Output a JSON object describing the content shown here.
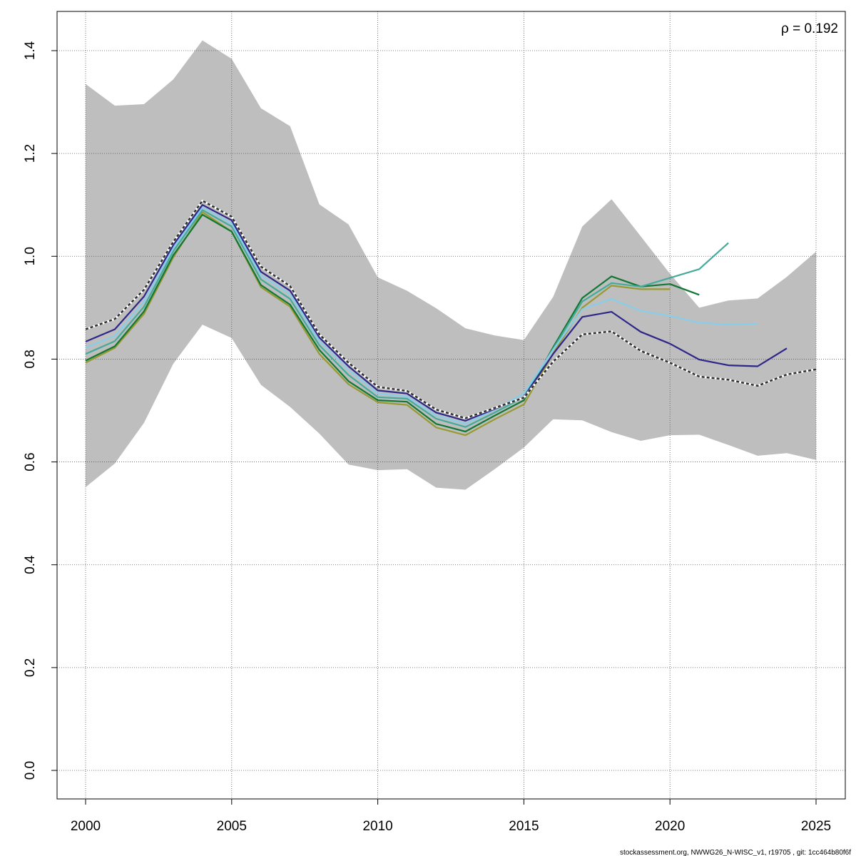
{
  "chart_data": {
    "type": "line",
    "title": "",
    "xlabel": "",
    "ylabel": "",
    "xlim": [
      2000,
      2025
    ],
    "ylim": [
      0,
      1.4
    ],
    "grid": true,
    "x_ticks": [
      "2000",
      "2005",
      "2010",
      "2015",
      "2020",
      "2025"
    ],
    "y_ticks": [
      "0.0",
      "0.2",
      "0.4",
      "0.6",
      "0.8",
      "1.0",
      "1.2",
      "1.4"
    ],
    "annotation": "ρ = 0.192",
    "footnote": "stockassessment.org, NWWG26_N-WISC_v1, r19705 , git: 1cc464b80f6f",
    "band": {
      "color": "#bebebe",
      "x": [
        2000,
        2001,
        2002,
        2003,
        2004,
        2005,
        2006,
        2007,
        2008,
        2009,
        2010,
        2011,
        2012,
        2013,
        2014,
        2015,
        2016,
        2017,
        2018,
        2019,
        2020,
        2021,
        2022,
        2023,
        2024,
        2025
      ],
      "upper": [
        1.335,
        1.293,
        1.296,
        1.344,
        1.42,
        1.384,
        1.288,
        1.253,
        1.101,
        1.062,
        0.959,
        0.933,
        0.899,
        0.86,
        0.846,
        0.837,
        0.921,
        1.058,
        1.111,
        1.039,
        0.966,
        0.9,
        0.914,
        0.918,
        0.96,
        1.009
      ],
      "lower": [
        0.551,
        0.597,
        0.676,
        0.791,
        0.867,
        0.841,
        0.75,
        0.707,
        0.655,
        0.595,
        0.584,
        0.586,
        0.55,
        0.546,
        0.586,
        0.628,
        0.683,
        0.681,
        0.658,
        0.641,
        0.652,
        0.653,
        0.633,
        0.612,
        0.617,
        0.604
      ]
    },
    "series": [
      {
        "color": "#2f2f2f",
        "dashed": true,
        "x": [
          2000,
          2001,
          2002,
          2003,
          2004,
          2005,
          2006,
          2007,
          2008,
          2009,
          2010,
          2011,
          2012,
          2013,
          2014,
          2015,
          2016,
          2017,
          2018,
          2019,
          2020,
          2021,
          2022,
          2023,
          2024,
          2025
        ],
        "values": [
          0.858,
          0.878,
          0.935,
          1.028,
          1.108,
          1.077,
          0.98,
          0.942,
          0.848,
          0.793,
          0.746,
          0.738,
          0.702,
          0.685,
          0.705,
          0.725,
          0.795,
          0.848,
          0.854,
          0.816,
          0.793,
          0.766,
          0.76,
          0.748,
          0.77,
          0.78
        ]
      },
      {
        "color": "#2e2688",
        "x": [
          2000,
          2001,
          2002,
          2003,
          2004,
          2005,
          2006,
          2007,
          2008,
          2009,
          2010,
          2011,
          2012,
          2013,
          2014,
          2015,
          2016,
          2017,
          2018,
          2019,
          2020,
          2021,
          2022,
          2023,
          2024
        ],
        "values": [
          0.834,
          0.858,
          0.922,
          1.022,
          1.1,
          1.07,
          0.97,
          0.933,
          0.842,
          0.786,
          0.739,
          0.733,
          0.696,
          0.68,
          0.703,
          0.726,
          0.81,
          0.882,
          0.892,
          0.853,
          0.83,
          0.799,
          0.788,
          0.786,
          0.821
        ]
      },
      {
        "color": "#87ceeb",
        "x": [
          2000,
          2001,
          2002,
          2003,
          2004,
          2005,
          2006,
          2007,
          2008,
          2009,
          2010,
          2011,
          2012,
          2013,
          2014,
          2015,
          2016,
          2017,
          2018,
          2019,
          2020,
          2021,
          2022,
          2023
        ],
        "values": [
          0.822,
          0.845,
          0.912,
          1.016,
          1.095,
          1.064,
          0.963,
          0.926,
          0.835,
          0.779,
          0.733,
          0.727,
          0.69,
          0.674,
          0.702,
          0.733,
          0.818,
          0.897,
          0.917,
          0.894,
          0.884,
          0.871,
          0.867,
          0.869
        ]
      },
      {
        "color": "#44aa99",
        "x": [
          2000,
          2001,
          2002,
          2003,
          2004,
          2005,
          2006,
          2007,
          2008,
          2009,
          2010,
          2011,
          2012,
          2013,
          2014,
          2015,
          2016,
          2017,
          2018,
          2019,
          2020,
          2021,
          2022
        ],
        "values": [
          0.81,
          0.835,
          0.902,
          1.01,
          1.09,
          1.058,
          0.955,
          0.917,
          0.827,
          0.769,
          0.726,
          0.723,
          0.684,
          0.668,
          0.696,
          0.726,
          0.82,
          0.912,
          0.948,
          0.941,
          0.958,
          0.975,
          1.026
        ]
      },
      {
        "color": "#117733",
        "x": [
          2000,
          2001,
          2002,
          2003,
          2004,
          2005,
          2006,
          2007,
          2008,
          2009,
          2010,
          2011,
          2012,
          2013,
          2014,
          2015,
          2016,
          2017,
          2018,
          2019,
          2020,
          2021
        ],
        "values": [
          0.797,
          0.825,
          0.893,
          1.002,
          1.081,
          1.048,
          0.944,
          0.906,
          0.818,
          0.757,
          0.72,
          0.717,
          0.674,
          0.659,
          0.69,
          0.72,
          0.823,
          0.919,
          0.961,
          0.941,
          0.946,
          0.925
        ]
      },
      {
        "color": "#999933",
        "x": [
          2000,
          2001,
          2002,
          2003,
          2004,
          2005,
          2006,
          2007,
          2008,
          2009,
          2010,
          2011,
          2012,
          2013,
          2014,
          2015,
          2016,
          2017,
          2018,
          2019,
          2020
        ],
        "values": [
          0.793,
          0.822,
          0.888,
          0.998,
          1.086,
          1.048,
          0.94,
          0.902,
          0.81,
          0.751,
          0.716,
          0.711,
          0.667,
          0.652,
          0.683,
          0.712,
          0.811,
          0.9,
          0.943,
          0.936,
          0.936
        ]
      }
    ]
  }
}
